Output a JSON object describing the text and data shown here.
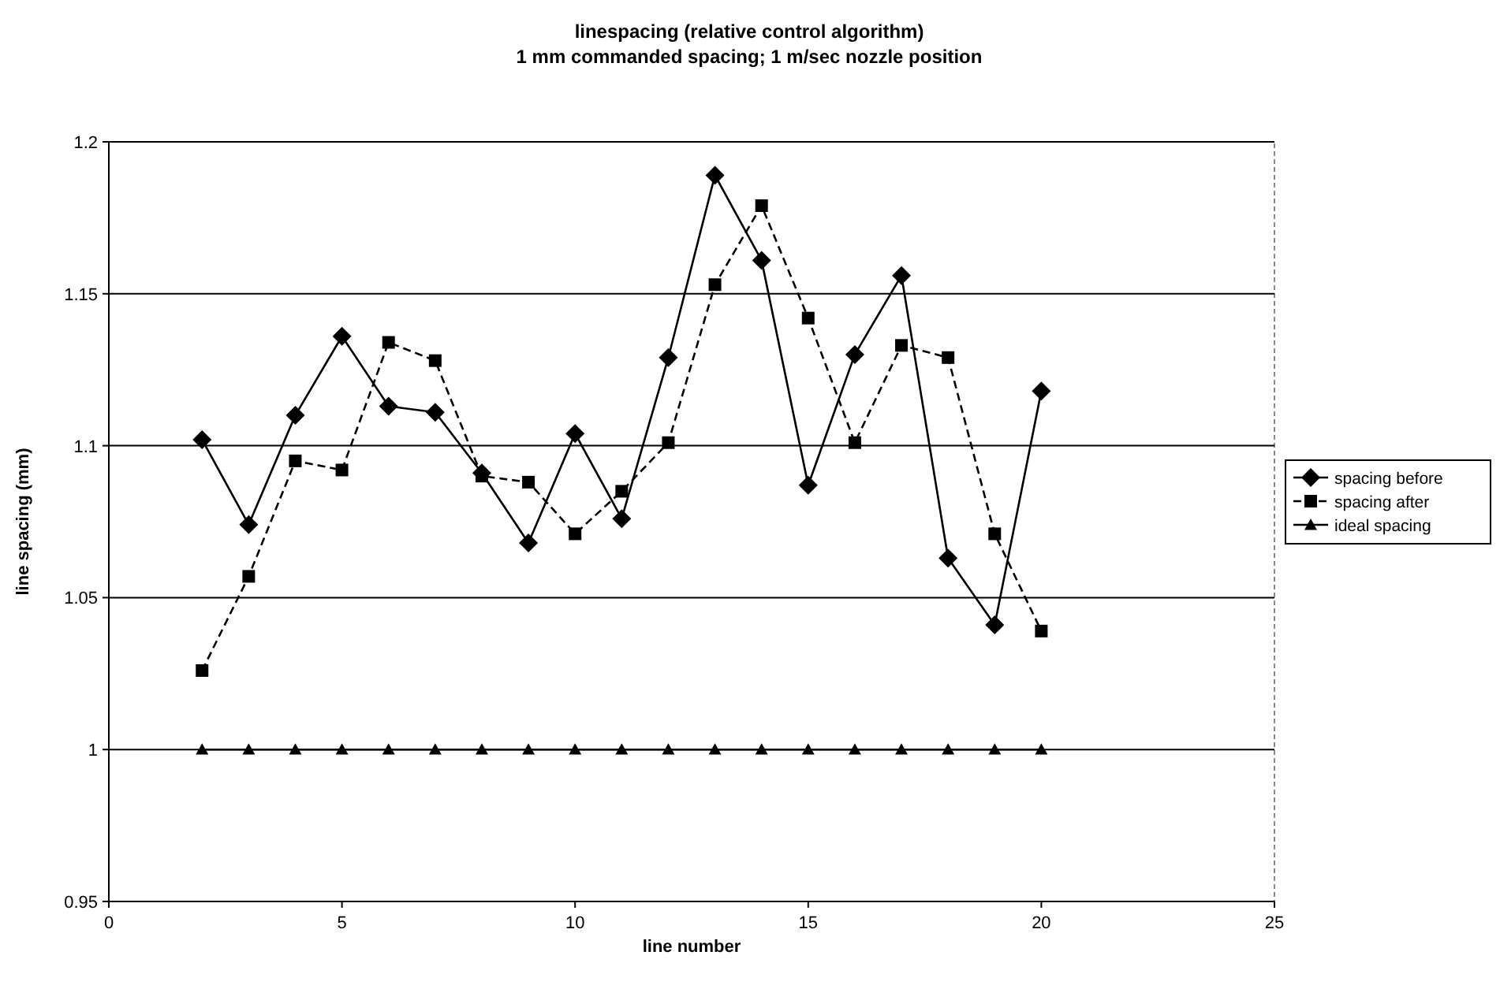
{
  "chart_data": {
    "type": "line",
    "title": "linespacing (relative control algorithm)",
    "subtitle": "1 mm commanded spacing; 1 m/sec nozzle position",
    "xlabel": "line number",
    "ylabel": "line spacing (mm)",
    "x": [
      2,
      3,
      4,
      5,
      6,
      7,
      8,
      9,
      10,
      11,
      12,
      13,
      14,
      15,
      16,
      17,
      18,
      19,
      20
    ],
    "series": [
      {
        "name": "spacing before",
        "color": "#000000",
        "marker": "diamond",
        "line_style": "solid",
        "values": [
          1.102,
          1.074,
          1.11,
          1.136,
          1.113,
          1.111,
          1.091,
          1.068,
          1.104,
          1.076,
          1.129,
          1.189,
          1.161,
          1.087,
          1.13,
          1.156,
          1.063,
          1.041,
          1.118
        ]
      },
      {
        "name": "spacing after",
        "color": "#000000",
        "marker": "square",
        "line_style": "dashed",
        "values": [
          1.026,
          1.057,
          1.095,
          1.092,
          1.134,
          1.128,
          1.09,
          1.088,
          1.071,
          1.085,
          1.101,
          1.153,
          1.179,
          1.142,
          1.101,
          1.133,
          1.129,
          1.071,
          1.039
        ]
      },
      {
        "name": "ideal spacing",
        "color": "#000000",
        "marker": "triangle",
        "line_style": "solid",
        "values": [
          1,
          1,
          1,
          1,
          1,
          1,
          1,
          1,
          1,
          1,
          1,
          1,
          1,
          1,
          1,
          1,
          1,
          1,
          1
        ]
      }
    ],
    "xlim": [
      0,
      25
    ],
    "xticks": [
      0,
      5,
      10,
      15,
      20,
      25
    ],
    "ylim": [
      0.95,
      1.2
    ],
    "yticks": [
      0.95,
      1,
      1.05,
      1.1,
      1.15,
      1.2
    ],
    "grid": "y",
    "legend": "right"
  }
}
